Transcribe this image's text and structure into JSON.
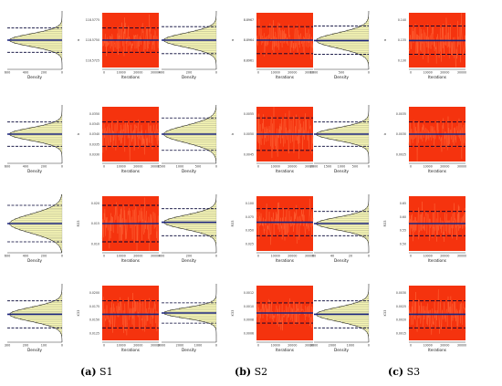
{
  "captions": [
    {
      "letter": "(a)",
      "name": "S1"
    },
    {
      "letter": "(b)",
      "name": "S2"
    },
    {
      "letter": "(c)",
      "name": "S3"
    }
  ],
  "colors": {
    "histogram_fill": "#f6f6b4",
    "histogram_line": "#000000",
    "trace_fill": "#f5330e",
    "trace_spike": "#ff6a3c",
    "mean_line": "#1a237e",
    "interval_line": "#000033"
  },
  "chart_data": [
    {
      "type": "trace-panel-grid",
      "scenario": "S1",
      "row": 1,
      "density_label": "Density",
      "trace_xlabel": "Iterations",
      "trace_ylabel": "a",
      "density_ticks": [
        "600",
        "400",
        "200",
        "0"
      ],
      "param_ticks": [
        "118.5775",
        "118.5750",
        "118.5725"
      ],
      "trace_ticks": [
        "0",
        "10000",
        "20000",
        "30000"
      ],
      "mean": 118.575,
      "lower": 118.5735,
      "upper": 118.5765
    },
    {
      "type": "trace-panel-grid",
      "scenario": "S2",
      "row": 1,
      "density_label": "Density",
      "trace_xlabel": "Iterations",
      "trace_ylabel": "a",
      "density_ticks": [
        "400",
        "200",
        "0"
      ],
      "param_ticks": [
        "8.8967",
        "8.8964",
        "8.8961"
      ],
      "trace_ticks": [
        "0",
        "10000",
        "20000",
        "30000"
      ],
      "mean": 8.8964,
      "lower": 8.8962,
      "upper": 8.8966
    },
    {
      "type": "trace-panel-grid",
      "scenario": "S3",
      "row": 1,
      "density_label": "Density",
      "trace_xlabel": "Iterations",
      "trace_ylabel": "a",
      "density_ticks": [
        "1000",
        "500",
        "0"
      ],
      "param_ticks": [
        "0.140",
        "0.135",
        "0.130"
      ],
      "trace_ticks": [
        "0",
        "10000",
        "20000",
        "30000"
      ],
      "mean": 0.1349,
      "lower": 0.1315,
      "upper": 0.1385
    },
    {
      "type": "trace-panel-grid",
      "scenario": "S1",
      "row": 2,
      "density_label": "Density",
      "trace_xlabel": "Iterations",
      "trace_ylabel": "b",
      "density_ticks": [
        "600",
        "400",
        "200",
        "0"
      ],
      "param_ticks": [
        "0.0350",
        "0.0345",
        "0.0340",
        "0.0335",
        "0.0330"
      ],
      "trace_ticks": [
        "0",
        "10000",
        "20000",
        "30000"
      ],
      "mean": 0.034,
      "lower": 0.0334,
      "upper": 0.0346
    },
    {
      "type": "trace-panel-grid",
      "scenario": "S2",
      "row": 2,
      "density_label": "Density",
      "trace_xlabel": "Iterations",
      "trace_ylabel": "b",
      "density_ticks": [
        "1500",
        "1000",
        "500",
        "0"
      ],
      "param_ticks": [
        "0.0055",
        "0.0050",
        "0.0045"
      ],
      "trace_ticks": [
        "0",
        "10000",
        "20000",
        "30000"
      ],
      "mean": 0.005,
      "lower": 0.0046,
      "upper": 0.0054
    },
    {
      "type": "trace-panel-grid",
      "scenario": "S3",
      "row": 2,
      "density_label": "Density",
      "trace_xlabel": "Iterations",
      "trace_ylabel": "b",
      "density_ticks": [
        "2000",
        "1500",
        "1000",
        "500",
        "0"
      ],
      "param_ticks": [
        "0.0035",
        "0.0030",
        "0.0025"
      ],
      "trace_ticks": [
        "0",
        "10000",
        "20000",
        "30000"
      ],
      "mean": 0.003,
      "lower": 0.0027,
      "upper": 0.0033
    },
    {
      "type": "trace-panel-grid",
      "scenario": "S1",
      "row": 3,
      "density_label": "Density",
      "trace_xlabel": "Iterations",
      "trace_ylabel": "R33",
      "density_ticks": [
        "600",
        "400",
        "200",
        "0"
      ],
      "param_ticks": [
        "0.020",
        "0.015",
        "0.010"
      ],
      "trace_ticks": [
        "0",
        "10000",
        "20000",
        "30000"
      ],
      "mean": 0.015,
      "lower": 0.0105,
      "upper": 0.0195
    },
    {
      "type": "trace-panel-grid",
      "scenario": "S2",
      "row": 3,
      "density_label": "Density",
      "trace_xlabel": "Iterations",
      "trace_ylabel": "R33",
      "density_ticks": [
        "400",
        "200",
        "0"
      ],
      "param_ticks": [
        "0.100",
        "0.075",
        "0.050",
        "0.025"
      ],
      "trace_ticks": [
        "0",
        "10000",
        "20000",
        "30000"
      ],
      "mean": 0.065,
      "lower": 0.04,
      "upper": 0.09
    },
    {
      "type": "trace-panel-grid",
      "scenario": "S3",
      "row": 3,
      "density_label": "Density",
      "trace_xlabel": "Iterations",
      "trace_ylabel": "R33",
      "density_ticks": [
        "60",
        "40",
        "20",
        "0"
      ],
      "param_ticks": [
        "0.65",
        "0.60",
        "0.55",
        "0.50"
      ],
      "trace_ticks": [
        "0",
        "10000",
        "20000",
        "30000"
      ],
      "mean": 0.575,
      "lower": 0.53,
      "upper": 0.62
    },
    {
      "type": "trace-panel-grid",
      "scenario": "S1",
      "row": 4,
      "density_label": "Density",
      "trace_xlabel": "Iterations",
      "trace_ylabel": "K33",
      "density_ticks": [
        "300",
        "200",
        "100",
        "0"
      ],
      "param_ticks": [
        "0.0200",
        "0.0175",
        "0.0150",
        "0.0125"
      ],
      "trace_ticks": [
        "0",
        "10000",
        "20000",
        "30000"
      ],
      "mean": 0.016,
      "lower": 0.0135,
      "upper": 0.0185
    },
    {
      "type": "trace-panel-grid",
      "scenario": "S2",
      "row": 4,
      "density_label": "Density",
      "trace_xlabel": "Iterations",
      "trace_ylabel": "K33",
      "density_ticks": [
        "3000",
        "2000",
        "1000",
        "0"
      ],
      "param_ticks": [
        "0.0012",
        "0.0010",
        "0.0008",
        "0.0006"
      ],
      "trace_ticks": [
        "0",
        "10000",
        "20000",
        "30000"
      ],
      "mean": 0.0009,
      "lower": 0.00075,
      "upper": 0.00105
    },
    {
      "type": "trace-panel-grid",
      "scenario": "S3",
      "row": 4,
      "density_label": "Density",
      "trace_xlabel": "Iterations",
      "trace_ylabel": "K33",
      "density_ticks": [
        "3000",
        "2000",
        "1000",
        "0"
      ],
      "param_ticks": [
        "0.0030",
        "0.0025",
        "0.0020",
        "0.0015"
      ],
      "trace_ticks": [
        "0",
        "10000",
        "20000",
        "30000"
      ],
      "mean": 0.0022,
      "lower": 0.0017,
      "upper": 0.0027
    }
  ]
}
